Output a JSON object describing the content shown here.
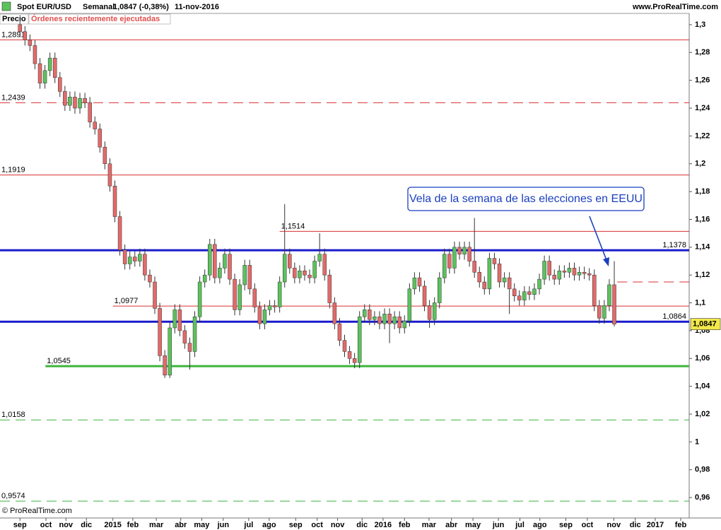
{
  "chart_data": {
    "type": "candlestick",
    "header": {
      "symbol": "Spot EUR/USD",
      "period": "Semanal",
      "quote": "1,0847 (-0,38%)",
      "date": "11-nov-2016",
      "site": "www.ProRealTime.com"
    },
    "panel_label": "Precio",
    "orders_label": "Órdenes recientemente ejecutadas",
    "copyright": "© ProRealTime.com",
    "annotation": "Vela de la semana de las elecciones en EEUU",
    "up_color": "#5cc25c",
    "down_color": "#e36a6a",
    "last_price": {
      "value": 1.0847,
      "label": "1,0847"
    },
    "xlim": [
      -4,
      134
    ],
    "ylim": [
      0.9453,
      1.3081
    ],
    "xticks": [
      {
        "value": 0,
        "label": "sep"
      },
      {
        "value": 5.2,
        "label": "oct"
      },
      {
        "value": 9.2,
        "label": "nov"
      },
      {
        "value": 13.3,
        "label": "dic"
      },
      {
        "value": 18.6,
        "label": "2015"
      },
      {
        "value": 22.6,
        "label": "feb"
      },
      {
        "value": 27.3,
        "label": "mar"
      },
      {
        "value": 32.2,
        "label": "abr"
      },
      {
        "value": 36.4,
        "label": "may"
      },
      {
        "value": 40.7,
        "label": "jun"
      },
      {
        "value": 45.8,
        "label": "jul"
      },
      {
        "value": 49.9,
        "label": "ago"
      },
      {
        "value": 55.2,
        "label": "sep"
      },
      {
        "value": 59.5,
        "label": "oct"
      },
      {
        "value": 63.6,
        "label": "nov"
      },
      {
        "value": 68.5,
        "label": "dic"
      },
      {
        "value": 72.7,
        "label": "2016"
      },
      {
        "value": 77,
        "label": "feb"
      },
      {
        "value": 81.9,
        "label": "mar"
      },
      {
        "value": 86.4,
        "label": "abr"
      },
      {
        "value": 90.7,
        "label": "may"
      },
      {
        "value": 95.8,
        "label": "jun"
      },
      {
        "value": 100.1,
        "label": "jul"
      },
      {
        "value": 104.1,
        "label": "ago"
      },
      {
        "value": 109.3,
        "label": "sep"
      },
      {
        "value": 113.6,
        "label": "oct"
      },
      {
        "value": 118.9,
        "label": "nov"
      },
      {
        "value": 123.2,
        "label": "dic"
      },
      {
        "value": 127.2,
        "label": "2017"
      },
      {
        "value": 132.3,
        "label": "feb"
      }
    ],
    "yticks": [
      {
        "value": 1.3,
        "label": "1,3"
      },
      {
        "value": 1.28,
        "label": "1,28"
      },
      {
        "value": 1.26,
        "label": "1,26"
      },
      {
        "value": 1.24,
        "label": "1,24"
      },
      {
        "value": 1.22,
        "label": "1,22"
      },
      {
        "value": 1.2,
        "label": "1,2"
      },
      {
        "value": 1.18,
        "label": "1,18"
      },
      {
        "value": 1.16,
        "label": "1,16"
      },
      {
        "value": 1.14,
        "label": "1,14"
      },
      {
        "value": 1.12,
        "label": "1,12"
      },
      {
        "value": 1.1,
        "label": "1,1"
      },
      {
        "value": 1.08,
        "label": "1,08"
      },
      {
        "value": 1.06,
        "label": "1,06"
      },
      {
        "value": 1.04,
        "label": "1,04"
      },
      {
        "value": 1.02,
        "label": "1,02"
      },
      {
        "value": 1,
        "label": "1"
      },
      {
        "value": 0.98,
        "label": "0,98"
      },
      {
        "value": 0.96,
        "label": "0,96"
      }
    ],
    "levels": [
      {
        "value": 1.2891,
        "label": "1,2891",
        "color": "#d83030",
        "style": "solid",
        "width": 1,
        "from": -4,
        "label_side": "left"
      },
      {
        "value": 1.2439,
        "label": "1,2439",
        "color": "#d83030",
        "style": "dashed",
        "width": 1,
        "from": -4,
        "label_side": "left"
      },
      {
        "value": 1.1919,
        "label": "1,1919",
        "color": "#d83030",
        "style": "solid",
        "width": 1,
        "from": -4,
        "label_side": "left"
      },
      {
        "value": 1.1514,
        "label": "1,1514",
        "color": "#d83030",
        "style": "solid",
        "width": 1,
        "from": 52,
        "label_side": "left"
      },
      {
        "value": 1.1378,
        "label": "1,1378",
        "color": "#1a1acc",
        "style": "solid",
        "width": 3,
        "from": -4,
        "label_side": "right"
      },
      {
        "value": 1.115,
        "color": "#d83030",
        "style": "dashed",
        "width": 1,
        "from": 119.6
      },
      {
        "value": 1.0977,
        "label": "1,0977",
        "color": "#d83030",
        "style": "solid",
        "width": 1,
        "from": 18.6,
        "label_side": "left"
      },
      {
        "value": 1.0864,
        "label": "1,0864",
        "color": "#1a1acc",
        "style": "solid",
        "width": 3,
        "from": -4,
        "label_side": "right"
      },
      {
        "value": 1.0545,
        "label": "1,0545",
        "color": "#3cb43c",
        "style": "solid",
        "width": 3,
        "from": 5.1,
        "label_side": "left"
      },
      {
        "value": 1.0158,
        "label": "1,0158",
        "color": "#3cb43c",
        "style": "dashed",
        "width": 1,
        "from": -4,
        "label_side": "left"
      },
      {
        "value": 0.9574,
        "label": "0,9574",
        "color": "#3cb43c",
        "style": "dashed",
        "width": 1,
        "from": -4,
        "label_side": "left"
      }
    ],
    "open": [
      1.3,
      1.295,
      1.289,
      1.285,
      1.272,
      1.258,
      1.267,
      1.276,
      1.262,
      1.252,
      1.242,
      1.248,
      1.24,
      1.247,
      1.244,
      1.23,
      1.225,
      1.212,
      1.2,
      1.184,
      1.162,
      1.138,
      1.128,
      1.133,
      1.13,
      1.135,
      1.12,
      1.115,
      1.096,
      1.062,
      1.048,
      1.082,
      1.095,
      1.08,
      1.071,
      1.065,
      1.09,
      1.115,
      1.12,
      1.142,
      1.118,
      1.125,
      1.135,
      1.117,
      1.095,
      1.113,
      1.127,
      1.11,
      1.097,
      1.085,
      1.095,
      1.098,
      1.097,
      1.115,
      1.135,
      1.125,
      1.118,
      1.123,
      1.12,
      1.118,
      1.13,
      1.135,
      1.12,
      1.1,
      1.085,
      1.073,
      1.065,
      1.06,
      1.057,
      1.09,
      1.095,
      1.088,
      1.09,
      1.085,
      1.092,
      1.085,
      1.09,
      1.082,
      1.087,
      1.11,
      1.118,
      1.112,
      1.098,
      1.088,
      1.1,
      1.118,
      1.135,
      1.125,
      1.14,
      1.135,
      1.14,
      1.13,
      1.122,
      1.115,
      1.11,
      1.132,
      1.128,
      1.115,
      1.118,
      1.11,
      1.105,
      1.102,
      1.108,
      1.106,
      1.11,
      1.117,
      1.13,
      1.12,
      1.117,
      1.123,
      1.122,
      1.125,
      1.12,
      1.122,
      1.121,
      1.12,
      1.098,
      1.089,
      1.098,
      1.113
    ],
    "high": [
      1.304,
      1.299,
      1.293,
      1.289,
      1.276,
      1.271,
      1.28,
      1.28,
      1.266,
      1.256,
      1.252,
      1.252,
      1.251,
      1.251,
      1.248,
      1.234,
      1.229,
      1.216,
      1.204,
      1.188,
      1.166,
      1.142,
      1.137,
      1.137,
      1.139,
      1.139,
      1.124,
      1.119,
      1.1,
      1.066,
      1.086,
      1.099,
      1.099,
      1.084,
      1.075,
      1.094,
      1.119,
      1.124,
      1.146,
      1.146,
      1.129,
      1.139,
      1.139,
      1.121,
      1.117,
      1.131,
      1.131,
      1.114,
      1.101,
      1.099,
      1.102,
      1.102,
      1.119,
      1.171,
      1.139,
      1.129,
      1.127,
      1.127,
      1.124,
      1.134,
      1.15,
      1.139,
      1.124,
      1.104,
      1.089,
      1.077,
      1.069,
      1.064,
      1.094,
      1.099,
      1.099,
      1.094,
      1.094,
      1.096,
      1.096,
      1.094,
      1.094,
      1.091,
      1.114,
      1.122,
      1.122,
      1.116,
      1.102,
      1.104,
      1.122,
      1.139,
      1.139,
      1.144,
      1.144,
      1.144,
      1.144,
      1.161,
      1.126,
      1.119,
      1.136,
      1.136,
      1.132,
      1.122,
      1.122,
      1.114,
      1.109,
      1.112,
      1.112,
      1.114,
      1.121,
      1.134,
      1.134,
      1.124,
      1.127,
      1.127,
      1.129,
      1.129,
      1.126,
      1.126,
      1.125,
      1.124,
      1.102,
      1.102,
      1.117,
      1.13
    ],
    "low": [
      1.291,
      1.285,
      1.281,
      1.268,
      1.254,
      1.254,
      1.263,
      1.258,
      1.248,
      1.238,
      1.238,
      1.236,
      1.236,
      1.24,
      1.226,
      1.221,
      1.208,
      1.196,
      1.18,
      1.158,
      1.134,
      1.124,
      1.124,
      1.126,
      1.126,
      1.116,
      1.111,
      1.092,
      1.058,
      1.046,
      1.046,
      1.078,
      1.076,
      1.067,
      1.052,
      1.061,
      1.086,
      1.111,
      1.116,
      1.114,
      1.114,
      1.121,
      1.113,
      1.091,
      1.091,
      1.109,
      1.106,
      1.093,
      1.081,
      1.081,
      1.091,
      1.093,
      1.093,
      1.111,
      1.121,
      1.114,
      1.114,
      1.116,
      1.114,
      1.114,
      1.126,
      1.116,
      1.096,
      1.081,
      1.069,
      1.061,
      1.056,
      1.053,
      1.053,
      1.086,
      1.084,
      1.084,
      1.081,
      1.081,
      1.071,
      1.081,
      1.078,
      1.078,
      1.083,
      1.106,
      1.108,
      1.094,
      1.082,
      1.084,
      1.096,
      1.114,
      1.121,
      1.121,
      1.131,
      1.131,
      1.126,
      1.118,
      1.111,
      1.106,
      1.106,
      1.124,
      1.111,
      1.111,
      1.092,
      1.101,
      1.098,
      1.098,
      1.102,
      1.102,
      1.106,
      1.113,
      1.116,
      1.113,
      1.113,
      1.118,
      1.118,
      1.116,
      1.116,
      1.117,
      1.116,
      1.094,
      1.085,
      1.085,
      1.094,
      1.083
    ],
    "close": [
      1.295,
      1.289,
      1.285,
      1.272,
      1.258,
      1.267,
      1.276,
      1.262,
      1.252,
      1.242,
      1.248,
      1.24,
      1.247,
      1.244,
      1.23,
      1.225,
      1.212,
      1.2,
      1.184,
      1.162,
      1.138,
      1.128,
      1.133,
      1.13,
      1.135,
      1.12,
      1.115,
      1.096,
      1.062,
      1.048,
      1.082,
      1.095,
      1.08,
      1.071,
      1.065,
      1.09,
      1.115,
      1.12,
      1.142,
      1.118,
      1.125,
      1.135,
      1.117,
      1.095,
      1.113,
      1.127,
      1.11,
      1.097,
      1.085,
      1.095,
      1.098,
      1.097,
      1.115,
      1.135,
      1.125,
      1.118,
      1.123,
      1.12,
      1.118,
      1.13,
      1.135,
      1.12,
      1.1,
      1.085,
      1.073,
      1.065,
      1.06,
      1.057,
      1.09,
      1.095,
      1.088,
      1.09,
      1.085,
      1.092,
      1.085,
      1.09,
      1.082,
      1.087,
      1.11,
      1.118,
      1.112,
      1.098,
      1.088,
      1.1,
      1.118,
      1.135,
      1.125,
      1.14,
      1.135,
      1.14,
      1.13,
      1.122,
      1.115,
      1.11,
      1.132,
      1.128,
      1.115,
      1.118,
      1.11,
      1.105,
      1.102,
      1.108,
      1.106,
      1.11,
      1.117,
      1.13,
      1.12,
      1.117,
      1.123,
      1.122,
      1.125,
      1.12,
      1.122,
      1.121,
      1.12,
      1.098,
      1.089,
      1.098,
      1.113,
      1.0847
    ]
  }
}
